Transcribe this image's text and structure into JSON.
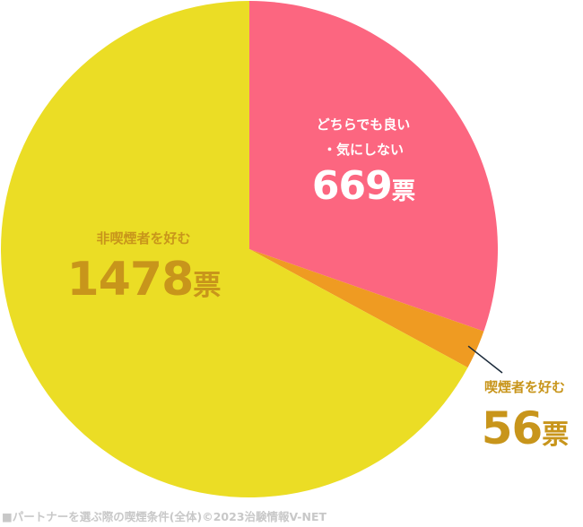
{
  "chart_data": {
    "type": "pie",
    "start": "top",
    "direction": "clockwise",
    "slices": [
      {
        "label_lines": [
          "どちらでも良い",
          "・気にしない"
        ],
        "value": 669,
        "unit": "票",
        "color": "#fc6680"
      },
      {
        "label_lines": [
          "喫煙者を好む"
        ],
        "value": 56,
        "unit": "票",
        "color": "#ef9b22"
      },
      {
        "label_lines": [
          "非喫煙者を好む"
        ],
        "value": 1478,
        "unit": "票",
        "color": "#ebdd25"
      }
    ],
    "label_color_dark": "#c8951b"
  },
  "caption": "■パートナーを選ぶ際の喫煙条件(全体)©2023治験情報V-NET"
}
